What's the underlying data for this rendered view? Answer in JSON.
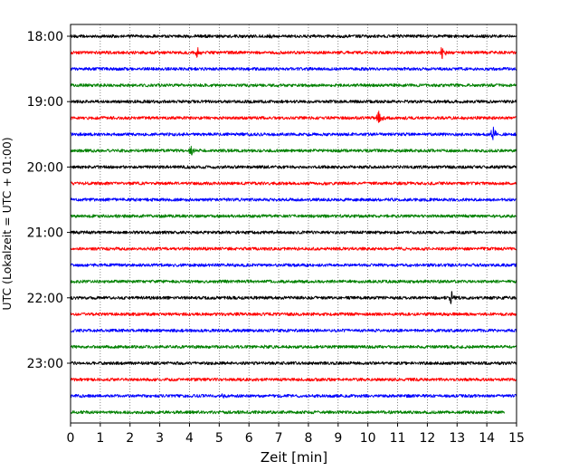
{
  "chart_data": {
    "type": "line",
    "title": "",
    "xlabel": "Zeit  [min]",
    "ylabel": "UTC (Lokalzeit = UTC + 01:00)",
    "xlim": [
      0,
      15
    ],
    "x_ticks": [
      "0",
      "1",
      "2",
      "3",
      "4",
      "5",
      "6",
      "7",
      "8",
      "9",
      "10",
      "11",
      "12",
      "13",
      "14",
      "15"
    ],
    "y_tick_labels": [
      "18:00",
      "19:00",
      "20:00",
      "21:00",
      "22:00",
      "23:00"
    ],
    "grid": "vertical dotted lines at each minute",
    "trace_colors": [
      "#000000",
      "#ff0000",
      "#0000ff",
      "#008000"
    ],
    "traces": [
      {
        "start": "18:00",
        "color": "#000000",
        "events": [
          {
            "t": 6.7,
            "amp": 0.35
          }
        ]
      },
      {
        "start": "18:15",
        "color": "#ff0000",
        "events": [
          {
            "t": 4.25,
            "amp": 1.6
          },
          {
            "t": 12.5,
            "amp": 1.6
          }
        ]
      },
      {
        "start": "18:30",
        "color": "#0000ff",
        "events": [
          {
            "t": 5.8,
            "amp": 0.35
          }
        ]
      },
      {
        "start": "18:45",
        "color": "#008000",
        "events": []
      },
      {
        "start": "19:00",
        "color": "#000000",
        "events": []
      },
      {
        "start": "19:15",
        "color": "#ff0000",
        "events": [
          {
            "t": 10.35,
            "amp": 1.9
          }
        ]
      },
      {
        "start": "19:30",
        "color": "#0000ff",
        "events": [
          {
            "t": 14.2,
            "amp": 2.2
          }
        ]
      },
      {
        "start": "19:45",
        "color": "#008000",
        "events": [
          {
            "t": 4.05,
            "amp": 1.5
          }
        ]
      },
      {
        "start": "20:00",
        "color": "#000000",
        "events": []
      },
      {
        "start": "20:15",
        "color": "#ff0000",
        "events": []
      },
      {
        "start": "20:30",
        "color": "#0000ff",
        "events": []
      },
      {
        "start": "20:45",
        "color": "#008000",
        "events": []
      },
      {
        "start": "21:00",
        "color": "#000000",
        "events": [
          {
            "t": 6.95,
            "amp": 0.5
          }
        ]
      },
      {
        "start": "21:15",
        "color": "#ff0000",
        "events": []
      },
      {
        "start": "21:30",
        "color": "#0000ff",
        "events": []
      },
      {
        "start": "21:45",
        "color": "#008000",
        "events": []
      },
      {
        "start": "22:00",
        "color": "#000000",
        "events": [
          {
            "t": 12.8,
            "amp": 1.8
          }
        ]
      },
      {
        "start": "22:15",
        "color": "#ff0000",
        "events": []
      },
      {
        "start": "22:30",
        "color": "#0000ff",
        "events": []
      },
      {
        "start": "22:45",
        "color": "#008000",
        "events": [
          {
            "t": 6.4,
            "amp": 0.4
          }
        ]
      },
      {
        "start": "23:00",
        "color": "#000000",
        "events": []
      },
      {
        "start": "23:15",
        "color": "#ff0000",
        "events": []
      },
      {
        "start": "23:30",
        "color": "#0000ff",
        "events": [
          {
            "t": 5.1,
            "amp": 0.7
          }
        ]
      },
      {
        "start": "23:45",
        "color": "#008000",
        "events": [],
        "end_minute": 14.6
      }
    ]
  }
}
